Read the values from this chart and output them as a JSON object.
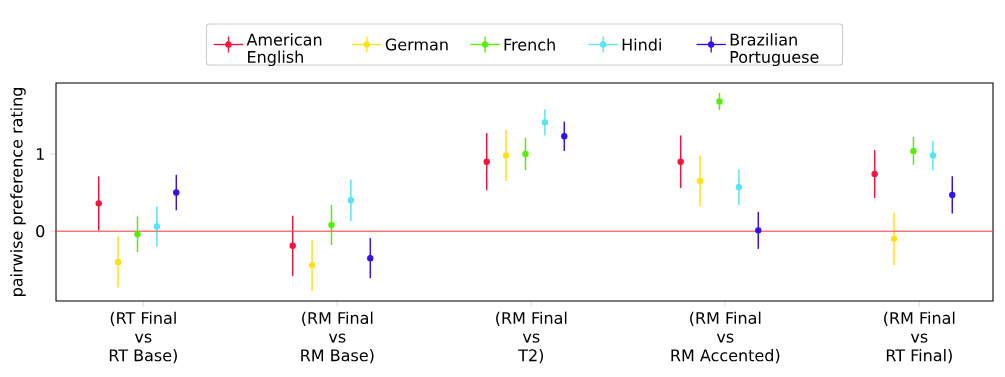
{
  "chart_data": {
    "type": "scatter",
    "ylabel": "pairwise preference rating",
    "categories": [
      "(RT Final\nvs\nRT Base)",
      "(RM Final\nvs\nRM Base)",
      "(RM Final\nvs\nT2)",
      "(RM Final\nvs\nRM Accented)",
      "(RM Final\nvs\nRT Final)"
    ],
    "series": [
      {
        "name": "American\nEnglish",
        "color": "#f0143c",
        "values": [
          0.36,
          -0.19,
          0.9,
          0.9,
          0.74
        ],
        "errors": [
          0.35,
          0.39,
          0.37,
          0.34,
          0.31
        ]
      },
      {
        "name": "German",
        "color": "#ffe119",
        "values": [
          -0.4,
          -0.44,
          0.98,
          0.65,
          -0.1
        ],
        "errors": [
          0.33,
          0.33,
          0.33,
          0.33,
          0.34
        ]
      },
      {
        "name": "French",
        "color": "#55f000",
        "values": [
          -0.04,
          0.08,
          1.0,
          1.68,
          1.04
        ],
        "errors": [
          0.23,
          0.26,
          0.21,
          0.11,
          0.18
        ]
      },
      {
        "name": "Hindi",
        "color": "#55e6f5",
        "values": [
          0.06,
          0.4,
          1.41,
          0.57,
          0.98
        ],
        "errors": [
          0.26,
          0.27,
          0.17,
          0.23,
          0.19
        ]
      },
      {
        "name": "Brazilian\nPortuguese",
        "color": "#3311ee",
        "values": [
          0.5,
          -0.35,
          1.23,
          0.01,
          0.47
        ],
        "errors": [
          0.23,
          0.26,
          0.19,
          0.24,
          0.24
        ]
      }
    ],
    "ylim": [
      -0.905,
      1.92
    ],
    "yticks": [
      0,
      1
    ],
    "grid": false,
    "legend": "top",
    "marker": "circle",
    "ref_lines": [
      {
        "axis": "y",
        "value": 0,
        "color": "#f24d4d"
      }
    ]
  }
}
